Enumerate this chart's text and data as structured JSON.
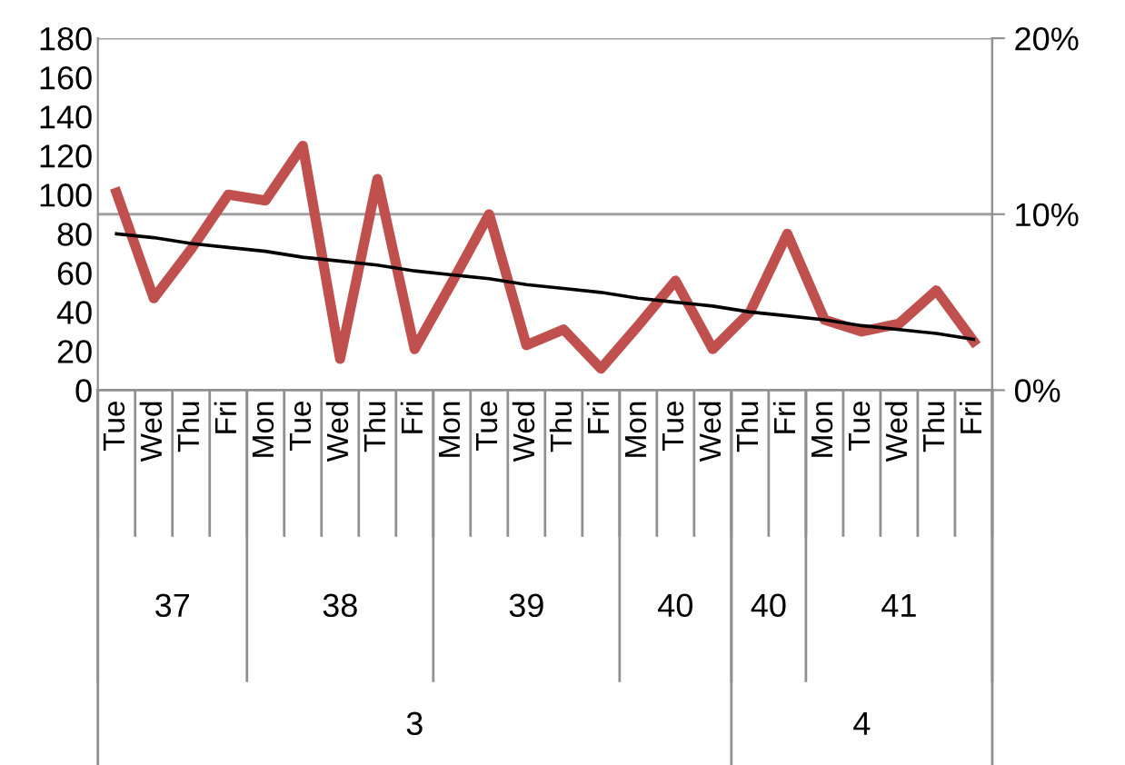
{
  "chart_data": {
    "type": "line",
    "categories": [
      "Tue",
      "Wed",
      "Thu",
      "Fri",
      "Mon",
      "Tue",
      "Wed",
      "Thu",
      "Fri",
      "Mon",
      "Tue",
      "Wed",
      "Thu",
      "Fri",
      "Mon",
      "Tue",
      "Wed",
      "Thu",
      "Fri",
      "Mon",
      "Tue",
      "Wed",
      "Thu",
      "Fri"
    ],
    "series": [
      {
        "color": "#c0504d",
        "values": [
          101,
          47,
          72,
          100,
          97,
          125,
          16,
          108,
          21,
          55,
          90,
          23,
          31,
          11,
          33,
          56,
          21,
          40,
          80,
          36,
          30,
          34,
          51,
          25
        ]
      },
      {
        "color": "#000000",
        "values": [
          80,
          78,
          75,
          73,
          71,
          68,
          66,
          64,
          61,
          59,
          57,
          54,
          52,
          50,
          47,
          45,
          43,
          40,
          38,
          36,
          33,
          31,
          29,
          26
        ]
      }
    ],
    "annotations": [
      "37",
      "38",
      "39",
      "40",
      "40",
      "41",
      "3",
      "4"
    ],
    "ylim": [
      0,
      180
    ],
    "yticks": [
      0,
      20,
      40,
      60,
      80,
      100,
      120,
      140,
      160,
      180
    ],
    "y2lim": [
      0,
      20
    ],
    "y2ticks": [
      {
        "value": 0,
        "label": "0%"
      },
      {
        "value": 10,
        "label": "10%"
      },
      {
        "value": 20,
        "label": "20%"
      }
    ],
    "grid": "y2",
    "legend": false,
    "marker": "none"
  }
}
